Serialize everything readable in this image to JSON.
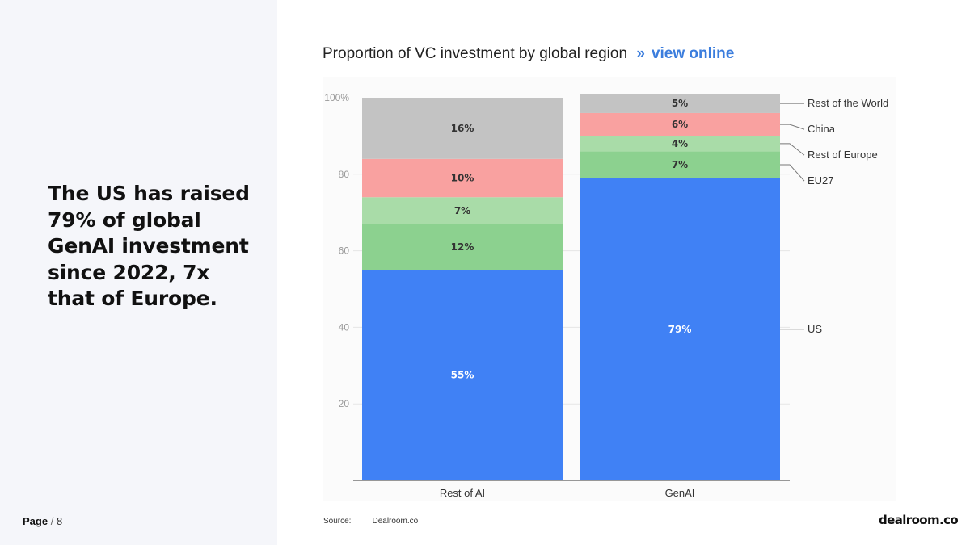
{
  "headline": "The US has raised 79% of global GenAI investment since 2022, 7x that of Europe.",
  "page": {
    "label": "Page",
    "separator": "/",
    "number": "8"
  },
  "chart_title": "Proportion of VC investment by global region",
  "view_online": {
    "arrows": "»",
    "label": "view online"
  },
  "source": {
    "label": "Source:",
    "value": "Dealroom.co"
  },
  "logo_text": "dealroom.co",
  "chart_data": {
    "type": "bar",
    "stacked": true,
    "categories": [
      "Rest of AI",
      "GenAI"
    ],
    "series": [
      {
        "name": "US",
        "values": [
          55,
          79
        ],
        "labels": [
          "55%",
          "79%"
        ],
        "color": "#4081f5",
        "label_color": "#ffffff"
      },
      {
        "name": "EU27",
        "values": [
          12,
          7
        ],
        "labels": [
          "12%",
          "7%"
        ],
        "color": "#8cd18f",
        "label_color": "#333333"
      },
      {
        "name": "Rest of Europe",
        "values": [
          7,
          4
        ],
        "labels": [
          "7%",
          "4%"
        ],
        "color": "#a9dca8",
        "label_color": "#333333"
      },
      {
        "name": "China",
        "values": [
          10,
          6
        ],
        "labels": [
          "10%",
          "6%"
        ],
        "color": "#f9a1a0",
        "label_color": "#333333"
      },
      {
        "name": "Rest of the World",
        "values": [
          16,
          5
        ],
        "labels": [
          "16%",
          "5%"
        ],
        "color": "#c3c3c3",
        "label_color": "#333333"
      }
    ],
    "yaxis": {
      "ticks": [
        20,
        40,
        60,
        80,
        100
      ],
      "tick_labels": [
        "20",
        "40",
        "60",
        "80",
        "100%"
      ],
      "ylim": [
        0,
        100
      ]
    },
    "grid": true,
    "legend": "right"
  }
}
